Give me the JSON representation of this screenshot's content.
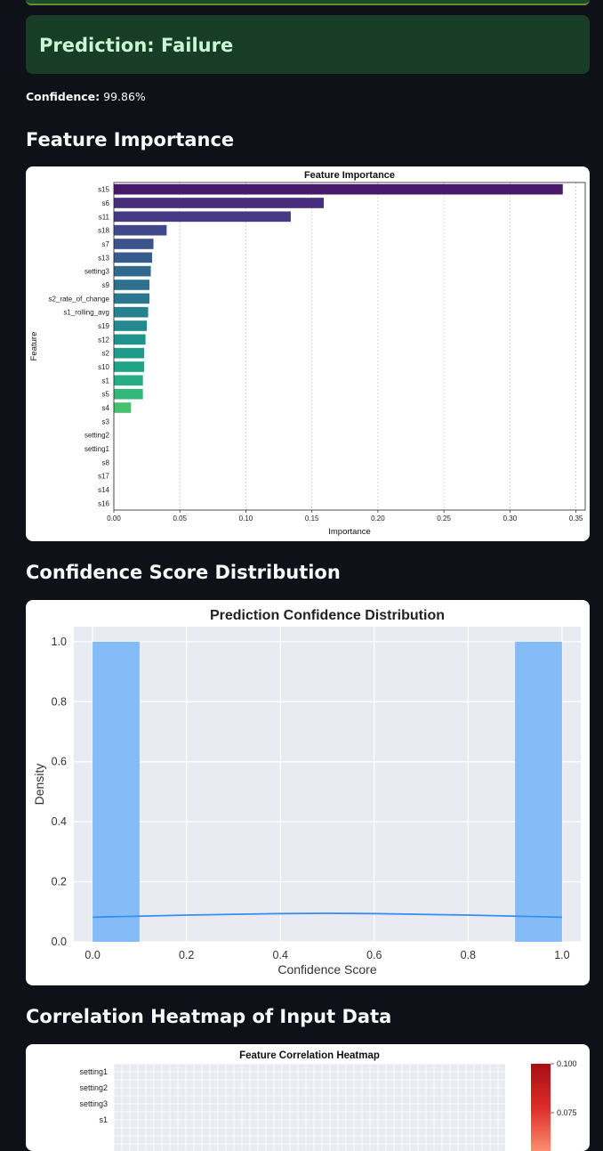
{
  "prediction": {
    "label": "Prediction: Failure"
  },
  "confidence": {
    "label": "Confidence:",
    "value": "99.86%"
  },
  "sections": {
    "feature_importance": "Feature Importance",
    "confidence_distribution": "Confidence Score Distribution",
    "correlation_heatmap": "Correlation Heatmap of Input Data"
  },
  "chart_data": [
    {
      "type": "bar",
      "orientation": "horizontal",
      "title": "Feature Importance",
      "xlabel": "Importance",
      "ylabel": "Feature",
      "xlim": [
        0,
        0.357
      ],
      "xticks": [
        "0.00",
        "0.05",
        "0.10",
        "0.15",
        "0.20",
        "0.25",
        "0.30",
        "0.35"
      ],
      "grid": "vertical-dashed",
      "palette": "viridis",
      "categories": [
        "s15",
        "s6",
        "s11",
        "s18",
        "s7",
        "s13",
        "setting3",
        "s9",
        "s2_rate_of_change",
        "s1_rolling_avg",
        "s19",
        "s12",
        "s2",
        "s10",
        "s1",
        "s5",
        "s4",
        "s3",
        "setting2",
        "setting1",
        "s8",
        "s17",
        "s14",
        "s16"
      ],
      "values": [
        0.34,
        0.159,
        0.134,
        0.04,
        0.03,
        0.029,
        0.028,
        0.027,
        0.027,
        0.026,
        0.025,
        0.024,
        0.023,
        0.023,
        0.022,
        0.022,
        0.013,
        0,
        0,
        0,
        0,
        0,
        0,
        0
      ],
      "colors": [
        "#48186a",
        "#472d7b",
        "#443983",
        "#3f4889",
        "#3b528b",
        "#365d8d",
        "#31688e",
        "#2d718e",
        "#2a788e",
        "#26828e",
        "#23898e",
        "#1f928c",
        "#1e9b8a",
        "#20a386",
        "#27ad81",
        "#35b779",
        "#48c16e",
        "#48c16e",
        "#48c16e",
        "#48c16e",
        "#48c16e",
        "#48c16e",
        "#48c16e",
        "#48c16e"
      ]
    },
    {
      "type": "histogram",
      "title": "Prediction Confidence Distribution",
      "xlabel": "Confidence Score",
      "ylabel": "Density",
      "xlim": [
        -0.04,
        1.04
      ],
      "ylim": [
        0,
        1.05
      ],
      "xticks": [
        "0.0",
        "0.2",
        "0.4",
        "0.6",
        "0.8",
        "1.0"
      ],
      "yticks": [
        "0.0",
        "0.2",
        "0.4",
        "0.6",
        "0.8",
        "1.0"
      ],
      "bins": [
        {
          "x0": 0.0,
          "x1": 0.1,
          "density": 1.0
        },
        {
          "x0": 0.9,
          "x1": 1.0,
          "density": 1.0
        }
      ],
      "kde": {
        "x": [
          0.0,
          0.2,
          0.4,
          0.5,
          0.6,
          0.8,
          1.0
        ],
        "y": [
          0.082,
          0.089,
          0.094,
          0.095,
          0.094,
          0.089,
          0.082
        ]
      },
      "bar_color": "#85bcf7",
      "kde_color": "#3590f0",
      "grid": true
    },
    {
      "type": "heatmap",
      "title": "Feature Correlation Heatmap",
      "row_labels": [
        "setting1",
        "setting2",
        "setting3",
        "s1"
      ],
      "colorbar_ticks": [
        "0.100",
        "0.075"
      ],
      "colormap": "Reds"
    }
  ]
}
